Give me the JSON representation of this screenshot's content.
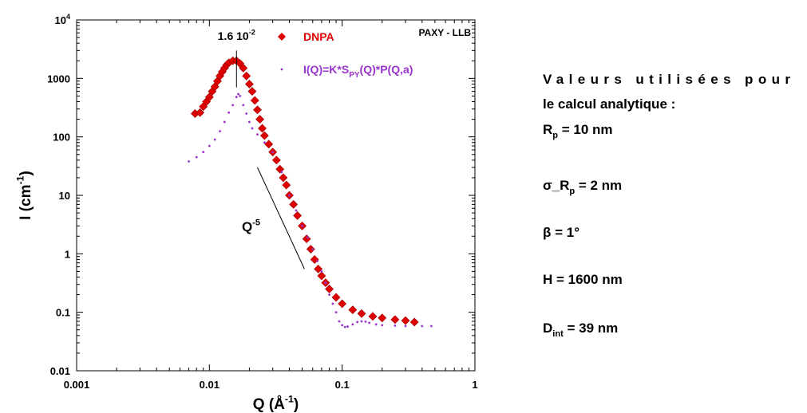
{
  "chart_data": {
    "type": "scatter",
    "x_label": {
      "text": "Q  (Å",
      "sup": "-1",
      "end": ")"
    },
    "y_label": {
      "text": "I (cm",
      "sup": "-1",
      "end": ")"
    },
    "log_x": true,
    "log_y": true,
    "xlim": [
      0.001,
      1
    ],
    "ylim": [
      0.01,
      10000
    ],
    "xticks": [
      0.001,
      0.01,
      0.1,
      1
    ],
    "yticks": [
      0.01,
      0.1,
      1,
      10,
      100,
      1000,
      {
        "value": 10000,
        "label": "10",
        "exponent": "4"
      }
    ],
    "series": [
      {
        "name": "DNPA",
        "color": "#e00000",
        "marker": "diamond",
        "x": [
          0.0078,
          0.0085,
          0.009,
          0.0095,
          0.01,
          0.0105,
          0.011,
          0.0115,
          0.012,
          0.0125,
          0.013,
          0.0135,
          0.014,
          0.015,
          0.016,
          0.017,
          0.018,
          0.019,
          0.02,
          0.021,
          0.022,
          0.023,
          0.024,
          0.025,
          0.026,
          0.028,
          0.03,
          0.032,
          0.034,
          0.036,
          0.038,
          0.04,
          0.043,
          0.046,
          0.05,
          0.054,
          0.058,
          0.062,
          0.066,
          0.07,
          0.075,
          0.08,
          0.09,
          0.1,
          0.12,
          0.14,
          0.17,
          0.2,
          0.25,
          0.3,
          0.35
        ],
        "values": [
          250,
          260,
          330,
          400,
          480,
          600,
          720,
          900,
          1100,
          1300,
          1500,
          1700,
          1850,
          2000,
          2000,
          1800,
          1500,
          1100,
          800,
          600,
          420,
          290,
          200,
          140,
          105,
          75,
          55,
          40,
          28,
          20,
          15,
          10,
          7,
          4.5,
          3,
          1.8,
          1.2,
          0.8,
          0.55,
          0.42,
          0.32,
          0.25,
          0.18,
          0.14,
          0.11,
          0.095,
          0.085,
          0.08,
          0.075,
          0.072,
          0.068
        ]
      },
      {
        "name": "I(Q)=K*S",
        "name_sub": "PY",
        "name_end": "(Q)*P(Q,a)",
        "color": "#9933cc",
        "marker": "dot",
        "x": [
          0.007,
          0.008,
          0.009,
          0.01,
          0.011,
          0.012,
          0.013,
          0.014,
          0.015,
          0.016,
          0.0165,
          0.017,
          0.018,
          0.019,
          0.02,
          0.021,
          0.023,
          0.026,
          0.03,
          0.035,
          0.04,
          0.045,
          0.05,
          0.055,
          0.06,
          0.065,
          0.07,
          0.075,
          0.08,
          0.085,
          0.09,
          0.095,
          0.1,
          0.105,
          0.11,
          0.12,
          0.13,
          0.14,
          0.15,
          0.16,
          0.18,
          0.2,
          0.25,
          0.3,
          0.4,
          0.47
        ],
        "values": [
          38,
          45,
          55,
          70,
          90,
          125,
          180,
          260,
          350,
          480,
          540,
          500,
          350,
          250,
          180,
          140,
          110,
          80,
          55,
          25,
          10,
          5.5,
          3,
          1.9,
          1.2,
          0.75,
          0.5,
          0.32,
          0.2,
          0.14,
          0.1,
          0.07,
          0.06,
          0.056,
          0.057,
          0.062,
          0.068,
          0.07,
          0.069,
          0.066,
          0.062,
          0.06,
          0.059,
          0.058,
          0.058,
          0.058
        ]
      }
    ],
    "annotations": [
      {
        "text": "1.6 10",
        "sup": "-2",
        "x": 0.016,
        "y": [
          3000,
          700
        ]
      },
      {
        "text": "Q",
        "sup": "-5",
        "x": [
          0.023,
          0.052
        ],
        "y": [
          30,
          0.55
        ]
      },
      {
        "text": "PAXY - LLB"
      }
    ]
  },
  "side_panel": {
    "heading": [
      "Valeurs utilisées pour",
      "le calcul analytique :"
    ],
    "parameters": [
      {
        "text": "R",
        "sub": "p",
        "end": " = 10 nm"
      },
      {
        "text": "σ_R",
        "sub": "p",
        "end": " = 2 nm"
      },
      {
        "text": "β = 1°"
      },
      {
        "text": "H = 1600 nm"
      },
      {
        "text": "D",
        "sub": "int",
        "end": " = 39 nm"
      }
    ]
  }
}
